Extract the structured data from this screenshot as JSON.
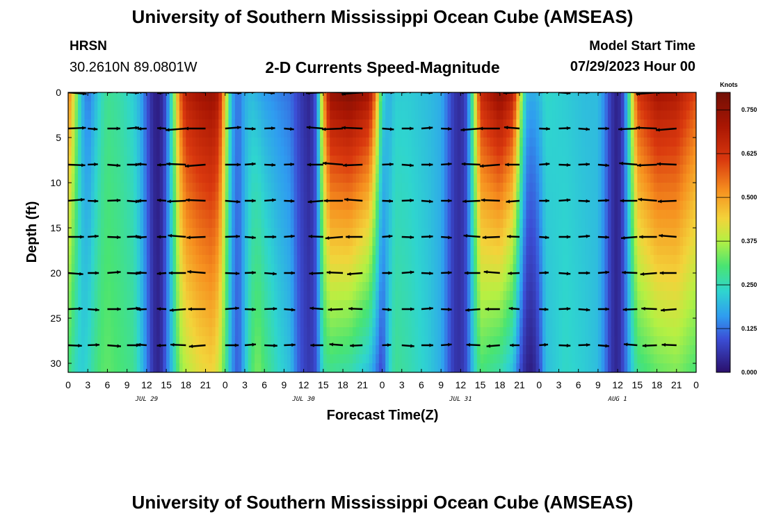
{
  "header": {
    "title": "University of Southern Mississippi Ocean Cube (AMSEAS)",
    "station": "HRSN",
    "coords": "30.2610N  89.0801W",
    "subtitle": "2-D Currents Speed-Magnitude",
    "start_label": "Model Start Time",
    "start_value": "07/29/2023 Hour 00"
  },
  "footer": {
    "title": "University of Southern Mississippi Ocean Cube (AMSEAS)"
  },
  "chart_data": {
    "type": "heatmap",
    "title": "2-D Currents Speed-Magnitude",
    "xlabel": "Forecast Time(Z)",
    "ylabel": "Depth (ft)",
    "xlim": [
      0,
      96
    ],
    "ylim": [
      0,
      31
    ],
    "y_inverted": true,
    "x_tick_values": [
      0,
      3,
      6,
      9,
      12,
      15,
      18,
      21,
      24,
      27,
      30,
      33,
      36,
      39,
      42,
      45,
      48,
      51,
      54,
      57,
      60,
      63,
      66,
      69,
      72,
      75,
      78,
      81,
      84,
      87,
      90,
      93,
      96
    ],
    "x_tick_labels": [
      "0",
      "3",
      "6",
      "9",
      "12",
      "15",
      "18",
      "21",
      "0",
      "3",
      "6",
      "9",
      "12",
      "15",
      "18",
      "21",
      "0",
      "3",
      "6",
      "9",
      "12",
      "15",
      "18",
      "21",
      "0",
      "3",
      "6",
      "9",
      "12",
      "15",
      "18",
      "21",
      "0"
    ],
    "y_ticks": [
      0,
      5,
      10,
      15,
      20,
      25,
      30
    ],
    "day_labels": [
      {
        "label": "JUL 29",
        "hour": 12
      },
      {
        "label": "JUL 30",
        "hour": 36
      },
      {
        "label": "JUL 31",
        "hour": 60
      },
      {
        "label": "AUG 1",
        "hour": 84
      }
    ],
    "colorbar": {
      "title": "Knots",
      "min": 0.0,
      "max": 0.8,
      "ticks": [
        "0.000",
        "0.125",
        "0.250",
        "0.375",
        "0.500",
        "0.625",
        "0.750"
      ],
      "tick_values": [
        0.0,
        0.125,
        0.25,
        0.375,
        0.5,
        0.625,
        0.75
      ]
    },
    "speed_profile_by_hour": [
      {
        "hour": 0,
        "surface": 0.55,
        "bottom": 0.3
      },
      {
        "hour": 1,
        "surface": 0.4,
        "bottom": 0.25
      },
      {
        "hour": 2,
        "surface": 0.2,
        "bottom": 0.22
      },
      {
        "hour": 3,
        "surface": 0.12,
        "bottom": 0.24
      },
      {
        "hour": 4,
        "surface": 0.18,
        "bottom": 0.28
      },
      {
        "hour": 5,
        "surface": 0.24,
        "bottom": 0.31
      },
      {
        "hour": 6,
        "surface": 0.28,
        "bottom": 0.32
      },
      {
        "hour": 8,
        "surface": 0.26,
        "bottom": 0.3
      },
      {
        "hour": 10,
        "surface": 0.22,
        "bottom": 0.28
      },
      {
        "hour": 11,
        "surface": 0.18,
        "bottom": 0.22
      },
      {
        "hour": 12,
        "surface": 0.1,
        "bottom": 0.14
      },
      {
        "hour": 13,
        "surface": 0.03,
        "bottom": 0.05
      },
      {
        "hour": 14,
        "surface": 0.02,
        "bottom": 0.03
      },
      {
        "hour": 15,
        "surface": 0.1,
        "bottom": 0.12
      },
      {
        "hour": 16,
        "surface": 0.3,
        "bottom": 0.22
      },
      {
        "hour": 17,
        "surface": 0.55,
        "bottom": 0.34
      },
      {
        "hour": 18,
        "surface": 0.68,
        "bottom": 0.38
      },
      {
        "hour": 20,
        "surface": 0.72,
        "bottom": 0.42
      },
      {
        "hour": 22,
        "surface": 0.74,
        "bottom": 0.44
      },
      {
        "hour": 23,
        "surface": 0.7,
        "bottom": 0.4
      },
      {
        "hour": 24,
        "surface": 0.45,
        "bottom": 0.3
      },
      {
        "hour": 25,
        "surface": 0.18,
        "bottom": 0.16
      },
      {
        "hour": 26,
        "surface": 0.12,
        "bottom": 0.1
      },
      {
        "hour": 27,
        "surface": 0.18,
        "bottom": 0.2
      },
      {
        "hour": 28,
        "surface": 0.2,
        "bottom": 0.3
      },
      {
        "hour": 29,
        "surface": 0.18,
        "bottom": 0.34
      },
      {
        "hour": 30,
        "surface": 0.16,
        "bottom": 0.3
      },
      {
        "hour": 32,
        "surface": 0.14,
        "bottom": 0.24
      },
      {
        "hour": 34,
        "surface": 0.12,
        "bottom": 0.2
      },
      {
        "hour": 35,
        "surface": 0.08,
        "bottom": 0.12
      },
      {
        "hour": 36,
        "surface": 0.05,
        "bottom": 0.08
      },
      {
        "hour": 37,
        "surface": 0.03,
        "bottom": 0.06
      },
      {
        "hour": 38,
        "surface": 0.12,
        "bottom": 0.1
      },
      {
        "hour": 39,
        "surface": 0.5,
        "bottom": 0.26
      },
      {
        "hour": 40,
        "surface": 0.74,
        "bottom": 0.28
      },
      {
        "hour": 43,
        "surface": 0.78,
        "bottom": 0.26
      },
      {
        "hour": 46,
        "surface": 0.72,
        "bottom": 0.2
      },
      {
        "hour": 47,
        "surface": 0.55,
        "bottom": 0.14
      },
      {
        "hour": 48,
        "surface": 0.25,
        "bottom": 0.08
      },
      {
        "hour": 49,
        "surface": 0.18,
        "bottom": 0.22
      },
      {
        "hour": 50,
        "surface": 0.22,
        "bottom": 0.28
      },
      {
        "hour": 52,
        "surface": 0.22,
        "bottom": 0.26
      },
      {
        "hour": 55,
        "surface": 0.2,
        "bottom": 0.22
      },
      {
        "hour": 57,
        "surface": 0.18,
        "bottom": 0.18
      },
      {
        "hour": 58,
        "surface": 0.12,
        "bottom": 0.12
      },
      {
        "hour": 59,
        "surface": 0.06,
        "bottom": 0.06
      },
      {
        "hour": 60,
        "surface": 0.04,
        "bottom": 0.05
      },
      {
        "hour": 61,
        "surface": 0.1,
        "bottom": 0.1
      },
      {
        "hour": 62,
        "surface": 0.35,
        "bottom": 0.22
      },
      {
        "hour": 63,
        "surface": 0.65,
        "bottom": 0.3
      },
      {
        "hour": 66,
        "surface": 0.76,
        "bottom": 0.26
      },
      {
        "hour": 68,
        "surface": 0.68,
        "bottom": 0.2
      },
      {
        "hour": 69,
        "surface": 0.45,
        "bottom": 0.1
      },
      {
        "hour": 70,
        "surface": 0.2,
        "bottom": 0.03
      },
      {
        "hour": 71,
        "surface": 0.18,
        "bottom": 0.02
      },
      {
        "hour": 72,
        "surface": 0.2,
        "bottom": 0.08
      },
      {
        "hour": 73,
        "surface": 0.24,
        "bottom": 0.2
      },
      {
        "hour": 76,
        "surface": 0.22,
        "bottom": 0.24
      },
      {
        "hour": 79,
        "surface": 0.2,
        "bottom": 0.22
      },
      {
        "hour": 81,
        "surface": 0.2,
        "bottom": 0.2
      },
      {
        "hour": 82,
        "surface": 0.14,
        "bottom": 0.14
      },
      {
        "hour": 83,
        "surface": 0.06,
        "bottom": 0.06
      },
      {
        "hour": 84,
        "surface": 0.02,
        "bottom": 0.03
      },
      {
        "hour": 85,
        "surface": 0.1,
        "bottom": 0.1
      },
      {
        "hour": 86,
        "surface": 0.35,
        "bottom": 0.2
      },
      {
        "hour": 87,
        "surface": 0.62,
        "bottom": 0.28
      },
      {
        "hour": 90,
        "surface": 0.72,
        "bottom": 0.32
      },
      {
        "hour": 93,
        "surface": 0.7,
        "bottom": 0.34
      },
      {
        "hour": 96,
        "surface": 0.6,
        "bottom": 0.3
      }
    ],
    "vectors": {
      "rows_depth_ft": [
        0,
        4,
        8,
        12,
        16,
        20,
        24,
        28
      ],
      "hours": [
        0,
        3,
        6,
        9,
        12,
        15,
        18,
        21,
        24,
        27,
        30,
        33,
        36,
        39,
        42,
        45,
        48,
        51,
        54,
        57,
        60,
        63,
        66,
        69,
        72,
        75,
        78,
        81,
        84,
        87,
        90,
        93,
        96
      ],
      "note": "arrows mostly point east/west alternating with tide phase"
    }
  }
}
